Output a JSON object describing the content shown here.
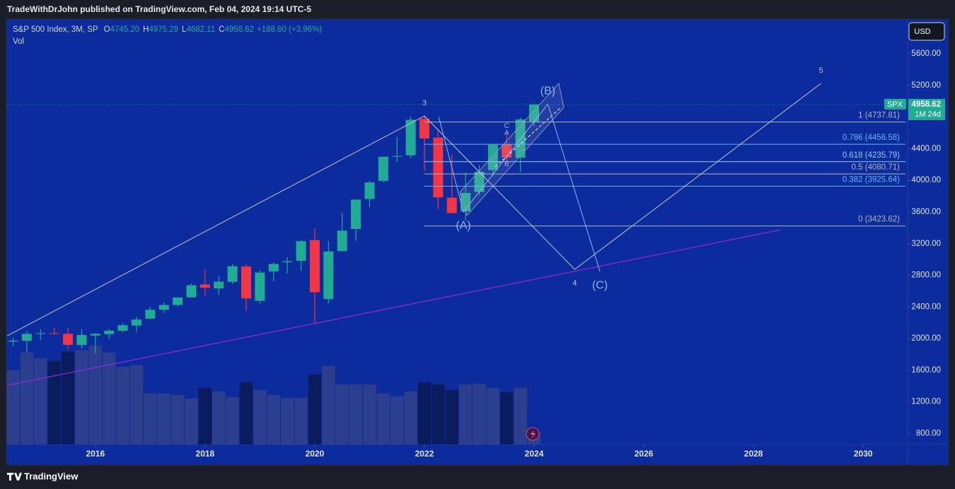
{
  "header": {
    "text": "TradeWithDrJohn published on TradingView.com, Feb 04, 2024 19:14 UTC-5"
  },
  "footer": {
    "brand": "TradingView"
  },
  "toolbar": {
    "currency": "USD"
  },
  "chart_data": {
    "type": "candlestick",
    "symbol": "S&P 500 Index, 3M, SP",
    "legend_values": [
      {
        "key": "O",
        "value": "4745.20"
      },
      {
        "key": "H",
        "value": "4975.29"
      },
      {
        "key": "L",
        "value": "4682.11"
      },
      {
        "key": "C",
        "value": "4958.62"
      }
    ],
    "change": "+188.80 (+3.96%)",
    "volume_label": "Vol",
    "x": [
      2014.5,
      2014.75,
      2015,
      2015.25,
      2015.5,
      2015.75,
      2016,
      2016.25,
      2016.5,
      2016.75,
      2017,
      2017.25,
      2017.5,
      2017.75,
      2018,
      2018.25,
      2018.5,
      2018.75,
      2019,
      2019.25,
      2019.5,
      2019.75,
      2020,
      2020.25,
      2020.5,
      2020.75,
      2021,
      2021.25,
      2021.5,
      2021.75,
      2022,
      2022.25,
      2022.5,
      2022.75,
      2023,
      2023.25,
      2023.5,
      2023.75,
      2024
    ],
    "open": [
      1960,
      1971,
      2059,
      2067,
      2060,
      1919,
      2038,
      2056,
      2099,
      2164,
      2251,
      2363,
      2424,
      2521,
      2683,
      2633,
      2717,
      2911,
      2476,
      2848,
      2964,
      2983,
      3244,
      2498,
      3105,
      3385,
      3764,
      3992,
      4300,
      4317,
      4778,
      4541,
      3781,
      3609,
      3853,
      4130,
      4454,
      4284,
      4745.2
    ],
    "high": [
      2011,
      2093,
      2119,
      2135,
      2132,
      2116,
      2073,
      2121,
      2194,
      2278,
      2401,
      2454,
      2519,
      2695,
      2873,
      2791,
      2940,
      2940,
      2860,
      2964,
      3028,
      3248,
      3394,
      3233,
      3588,
      3760,
      3994,
      4301,
      4546,
      4808,
      4818,
      4637,
      4325,
      4100,
      4195,
      4458,
      4607,
      4793,
      4975.29
    ],
    "low": [
      1904,
      1820,
      1981,
      2048,
      1867,
      1872,
      1810,
      1992,
      2074,
      2084,
      2245,
      2322,
      2405,
      2520,
      2533,
      2553,
      2691,
      2347,
      2443,
      2722,
      2822,
      2856,
      2192,
      2447,
      3101,
      3234,
      3662,
      3979,
      4233,
      4278,
      4115,
      3637,
      3584,
      3491,
      3809,
      4048,
      4216,
      4104,
      4682.11
    ],
    "close": [
      1972,
      2059,
      2068,
      2063,
      1920,
      2044,
      2060,
      2099,
      2168,
      2239,
      2363,
      2423,
      2519,
      2674,
      2641,
      2718,
      2914,
      2507,
      2834,
      2942,
      2977,
      3231,
      2585,
      3100,
      3363,
      3756,
      3973,
      4298,
      4308,
      4766,
      4530,
      3785,
      3586,
      3840,
      4109,
      4450,
      4288,
      4770,
      4958.62
    ],
    "volume": [
      105,
      130,
      122,
      118,
      131,
      133,
      140,
      130,
      110,
      112,
      72,
      72,
      70,
      65,
      80,
      75,
      67,
      88,
      77,
      70,
      66,
      66,
      99,
      111,
      85,
      85,
      85,
      72,
      68,
      75,
      88,
      85,
      77,
      85,
      86,
      80,
      74,
      80,
      18
    ],
    "vlim": [
      0,
      600
    ],
    "up_color": "#22ab94",
    "down_color": "#f23645",
    "volume_up_color": "#2b3f8e",
    "volume_down_color": "#0b1c5e",
    "xlim": [
      2014.39,
      2030.81
    ],
    "xticks": [
      2016,
      2018,
      2020,
      2022,
      2024,
      2026,
      2028,
      2030
    ],
    "ylim": [
      660,
      6030
    ],
    "yticks": [
      {
        "value": 800,
        "label": "800.00"
      },
      {
        "value": 1200,
        "label": "1200.00"
      },
      {
        "value": 1600,
        "label": "1600.00"
      },
      {
        "value": 2000,
        "label": "2000.00"
      },
      {
        "value": 2400,
        "label": "2400.00"
      },
      {
        "value": 2800,
        "label": "2800.00"
      },
      {
        "value": 3200,
        "label": "3200.00"
      },
      {
        "value": 3600,
        "label": "3600.00"
      },
      {
        "value": 4000,
        "label": "4000.00"
      },
      {
        "value": 4400,
        "label": "4400.00"
      },
      {
        "value": 4800,
        "label": "4800.00"
      },
      {
        "value": 5200,
        "label": "5200.00"
      },
      {
        "value": 5600,
        "label": "5600.00"
      }
    ],
    "last_price": {
      "symbol": "SPX",
      "value": 4958.62,
      "countdown": "1M 24d"
    },
    "fib_start": 2022.0,
    "fib": [
      {
        "label": "1 (4737.81)",
        "value": 4737.81,
        "color": "#b2b5be"
      },
      {
        "label": "0.786 (4456.58)",
        "value": 4456.58,
        "color": "#64b5f6"
      },
      {
        "label": "0.618 (4235.79)",
        "value": 4235.79,
        "color": "#90caf9"
      },
      {
        "label": "0.5 (4080.71)",
        "value": 4080.71,
        "color": "#b2b5be"
      },
      {
        "label": "0.382 (3925.64)",
        "value": 3925.64,
        "color": "#64b5f6"
      },
      {
        "label": "0 (3423.62)",
        "value": 3423.62,
        "color": "#b2b5be"
      }
    ],
    "waves": [
      {
        "color": "#c3c6d0",
        "x": [
          2014.39,
          2022.0,
          2024.74,
          2029.23
        ],
        "values": [
          2033,
          4814,
          2874,
          5225
        ],
        "labels": [
          null,
          "3",
          "4",
          "5"
        ]
      },
      {
        "color": "#8fb4ea",
        "x": [
          2022.26,
          2022.71,
          2024.25,
          2025.2
        ],
        "values": [
          4804,
          3600,
          4965,
          2847
        ],
        "labels": [
          null,
          "(A)",
          "(B)",
          "(C)"
        ]
      }
    ],
    "support": {
      "color": "#9c27d9",
      "x": [
        2014.39,
        2028.49
      ],
      "values": [
        1408,
        3374
      ]
    },
    "annotations": [
      {
        "text": "C",
        "x": 2023.5,
        "value": 4688
      },
      {
        "text": "A",
        "x": 2023.5,
        "value": 4599
      },
      {
        "text": "B",
        "x": 2023.5,
        "value": 4205
      }
    ]
  }
}
